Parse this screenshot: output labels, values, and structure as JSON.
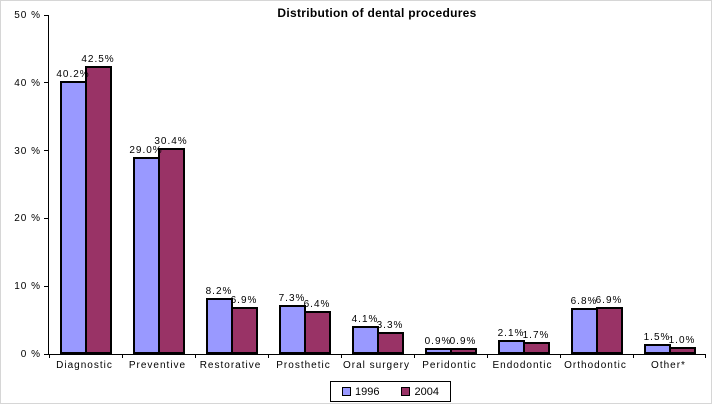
{
  "page": {
    "background": "#ffffff",
    "frame_border_color": "#d6d6d6"
  },
  "chart_data": {
    "type": "bar",
    "title": "Distribution of dental procedures",
    "categories": [
      "Diagnostic",
      "Preventive",
      "Restorative",
      "Prosthetic",
      "Oral surgery",
      "Peridontic",
      "Endodontic",
      "Orthodontic",
      "Other*"
    ],
    "series": [
      {
        "name": "1996",
        "color": "#9999ff",
        "values": [
          40.2,
          29.0,
          8.2,
          7.3,
          4.1,
          0.9,
          2.1,
          6.8,
          1.5
        ],
        "data_labels": [
          "40.2%",
          "29.0%",
          "8.2%",
          "7.3%",
          "4.1%",
          "0.9%",
          "2.1%",
          "6.8%",
          "1.5%"
        ]
      },
      {
        "name": "2004",
        "color": "#993366",
        "values": [
          42.5,
          30.4,
          6.9,
          6.4,
          3.3,
          0.9,
          1.7,
          6.9,
          1.0
        ],
        "data_labels": [
          "42.5%",
          "30.4%",
          "6.9%",
          "6.4%",
          "3.3%",
          "0.9%",
          "1.7%",
          "6.9%",
          "1.0%"
        ]
      }
    ],
    "ylim": [
      0,
      50
    ],
    "yticks": [
      {
        "value": 0,
        "label": "0 %"
      },
      {
        "value": 10,
        "label": "10 %"
      },
      {
        "value": 20,
        "label": "20 %"
      },
      {
        "value": 30,
        "label": "30 %"
      },
      {
        "value": 40,
        "label": "40 %"
      },
      {
        "value": 50,
        "label": "50 %"
      }
    ],
    "grid": false,
    "legend_position": "bottom",
    "bar_border_color": "#000000"
  }
}
